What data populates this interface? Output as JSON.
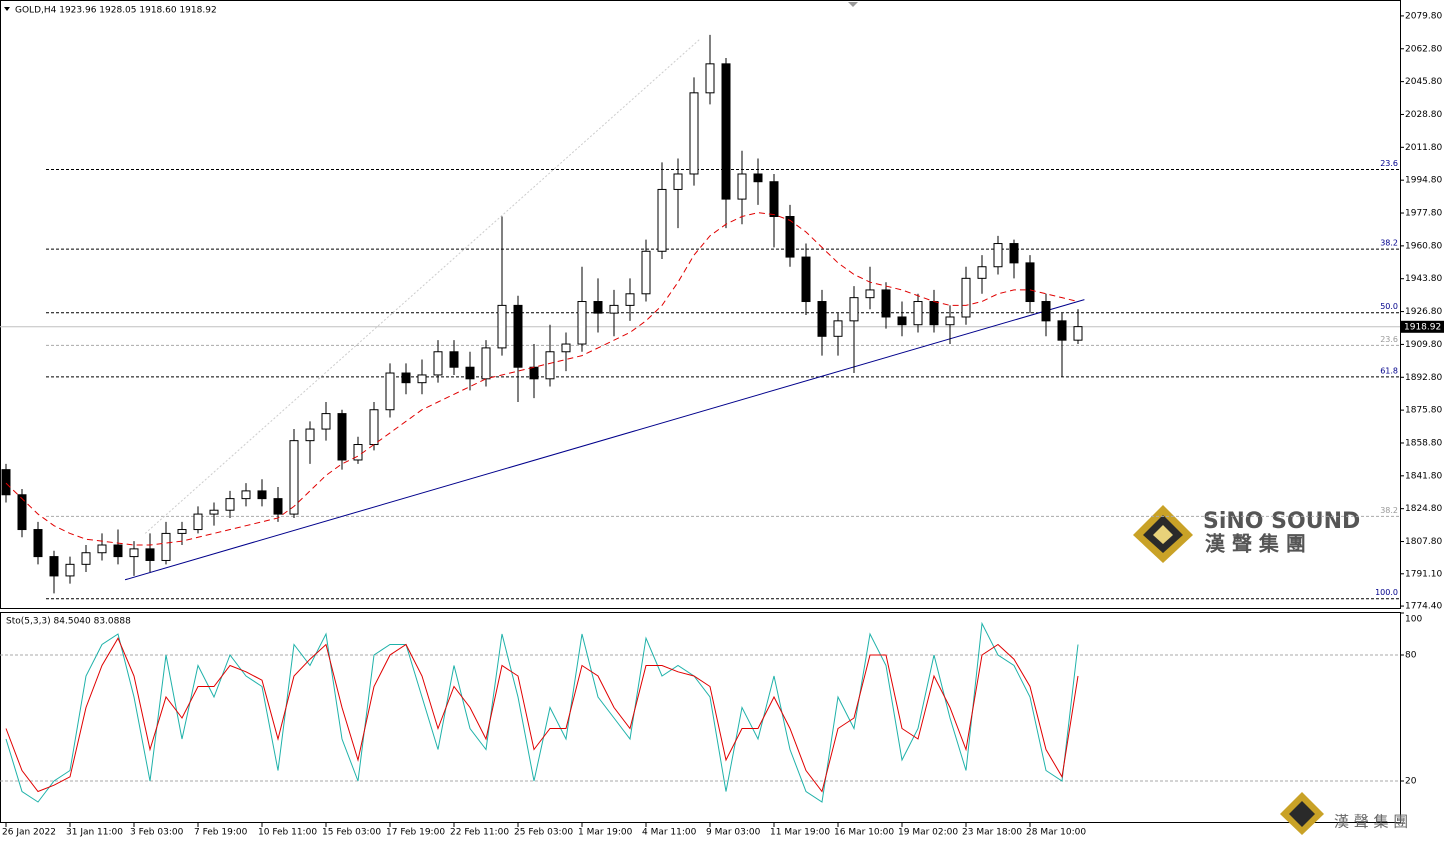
{
  "chart_data": [
    {
      "type": "candlestick",
      "title": "GOLD,H4  1923.96 1928.05 1918.60 1918.92",
      "categories": [
        "26 Jan 2022",
        null,
        null,
        null,
        "31 Jan 11:00",
        null,
        null,
        null,
        "3 Feb 03:00",
        null,
        null,
        null,
        "7 Feb 19:00",
        null,
        null,
        null,
        "10 Feb 11:00",
        null,
        null,
        null,
        "15 Feb 03:00",
        null,
        null,
        null,
        "17 Feb 19:00",
        null,
        null,
        null,
        "22 Feb 11:00",
        null,
        null,
        null,
        "25 Feb 03:00",
        null,
        null,
        null,
        "1 Mar 19:00",
        null,
        null,
        null,
        "4 Mar 11:00",
        null,
        null,
        null,
        "9 Mar 03:00",
        null,
        null,
        null,
        "11 Mar 19:00",
        null,
        null,
        null,
        "16 Mar 10:00",
        null,
        null,
        null,
        "19 Mar 02:00",
        null,
        null,
        null,
        "23 Mar 18:00",
        null,
        null,
        null,
        "28 Mar 10:00",
        null,
        null,
        null
      ],
      "candles": [
        [
          1845,
          1848,
          1828,
          1832
        ],
        [
          1832,
          1835,
          1810,
          1814
        ],
        [
          1814,
          1818,
          1796,
          1800
        ],
        [
          1800,
          1803,
          1781,
          1790
        ],
        [
          1790,
          1800,
          1786,
          1796
        ],
        [
          1796,
          1806,
          1792,
          1802
        ],
        [
          1802,
          1812,
          1798,
          1806
        ],
        [
          1806,
          1814,
          1796,
          1800
        ],
        [
          1800,
          1808,
          1790,
          1804
        ],
        [
          1804,
          1812,
          1792,
          1798
        ],
        [
          1798,
          1818,
          1796,
          1812
        ],
        [
          1812,
          1818,
          1806,
          1814
        ],
        [
          1814,
          1826,
          1812,
          1822
        ],
        [
          1822,
          1828,
          1816,
          1824
        ],
        [
          1824,
          1834,
          1820,
          1830
        ],
        [
          1830,
          1838,
          1826,
          1834
        ],
        [
          1834,
          1840,
          1826,
          1830
        ],
        [
          1830,
          1836,
          1818,
          1822
        ],
        [
          1822,
          1866,
          1820,
          1860
        ],
        [
          1860,
          1870,
          1848,
          1866
        ],
        [
          1866,
          1880,
          1860,
          1874
        ],
        [
          1874,
          1876,
          1845,
          1850
        ],
        [
          1850,
          1862,
          1848,
          1858
        ],
        [
          1858,
          1880,
          1855,
          1876
        ],
        [
          1876,
          1900,
          1872,
          1895
        ],
        [
          1895,
          1900,
          1884,
          1890
        ],
        [
          1890,
          1902,
          1884,
          1894
        ],
        [
          1894,
          1912,
          1890,
          1906
        ],
        [
          1906,
          1912,
          1894,
          1898
        ],
        [
          1898,
          1906,
          1886,
          1892
        ],
        [
          1892,
          1912,
          1888,
          1908
        ],
        [
          1908,
          1976,
          1904,
          1930
        ],
        [
          1930,
          1935,
          1880,
          1898
        ],
        [
          1898,
          1910,
          1882,
          1892
        ],
        [
          1892,
          1920,
          1888,
          1906
        ],
        [
          1906,
          1916,
          1896,
          1910
        ],
        [
          1910,
          1950,
          1906,
          1932
        ],
        [
          1932,
          1944,
          1916,
          1926
        ],
        [
          1926,
          1938,
          1914,
          1930
        ],
        [
          1930,
          1944,
          1922,
          1936
        ],
        [
          1936,
          1964,
          1932,
          1958
        ],
        [
          1958,
          2004,
          1954,
          1990
        ],
        [
          1990,
          2006,
          1970,
          1998
        ],
        [
          1998,
          2048,
          1992,
          2040
        ],
        [
          2040,
          2070,
          2034,
          2055
        ],
        [
          2055,
          2058,
          1970,
          1985
        ],
        [
          1985,
          2010,
          1972,
          1998
        ],
        [
          1998,
          2006,
          1982,
          1994
        ],
        [
          1994,
          1998,
          1960,
          1976
        ],
        [
          1976,
          1982,
          1950,
          1955
        ],
        [
          1955,
          1962,
          1925,
          1932
        ],
        [
          1932,
          1938,
          1904,
          1914
        ],
        [
          1914,
          1926,
          1904,
          1922
        ],
        [
          1922,
          1940,
          1895,
          1934
        ],
        [
          1934,
          1950,
          1928,
          1938
        ],
        [
          1938,
          1942,
          1918,
          1924
        ],
        [
          1924,
          1932,
          1914,
          1920
        ],
        [
          1920,
          1936,
          1916,
          1932
        ],
        [
          1932,
          1938,
          1916,
          1920
        ],
        [
          1920,
          1930,
          1910,
          1924
        ],
        [
          1924,
          1950,
          1920,
          1944
        ],
        [
          1944,
          1956,
          1936,
          1950
        ],
        [
          1950,
          1966,
          1946,
          1962
        ],
        [
          1962,
          1964,
          1944,
          1952
        ],
        [
          1952,
          1956,
          1926,
          1932
        ],
        [
          1932,
          1936,
          1914,
          1922
        ],
        [
          1922,
          1926,
          1893,
          1912
        ],
        [
          1912,
          1928,
          1910,
          1919
        ]
      ],
      "bull_color": "#ffffff",
      "bear_color": "#000000",
      "wick_color": "#000000",
      "ma": [
        1838,
        1830,
        1822,
        1816,
        1812,
        1809,
        1808,
        1807,
        1806,
        1806,
        1807,
        1808,
        1810,
        1812,
        1814,
        1816,
        1818,
        1820,
        1826,
        1834,
        1842,
        1848,
        1852,
        1858,
        1864,
        1870,
        1876,
        1880,
        1884,
        1888,
        1892,
        1894,
        1896,
        1898,
        1900,
        1902,
        1904,
        1908,
        1912,
        1916,
        1922,
        1930,
        1942,
        1956,
        1966,
        1972,
        1976,
        1978,
        1977,
        1974,
        1968,
        1960,
        1952,
        1946,
        1942,
        1940,
        1938,
        1935,
        1932,
        1930,
        1930,
        1932,
        1936,
        1938,
        1938,
        1936,
        1934,
        1932
      ],
      "ma_color": "#e00000",
      "ylim": [
        1773.4,
        2087.0
      ],
      "yticks": [
        {
          "value": 2079.8,
          "label": "2079.80"
        },
        {
          "value": 2062.8,
          "label": "2062.80"
        },
        {
          "value": 2045.8,
          "label": "2045.80"
        },
        {
          "value": 2028.8,
          "label": "2028.80"
        },
        {
          "value": 2011.8,
          "label": "2011.80"
        },
        {
          "value": 1994.8,
          "label": "1994.80"
        },
        {
          "value": 1977.8,
          "label": "1977.80"
        },
        {
          "value": 1960.8,
          "label": "1960.80"
        },
        {
          "value": 1943.8,
          "label": "1943.80"
        },
        {
          "value": 1926.8,
          "label": "1926.80"
        },
        {
          "value": 1909.8,
          "label": "1909.80"
        },
        {
          "value": 1892.8,
          "label": "1892.80"
        },
        {
          "value": 1875.8,
          "label": "1875.80"
        },
        {
          "value": 1858.8,
          "label": "1858.80"
        },
        {
          "value": 1841.8,
          "label": "1841.80"
        },
        {
          "value": 1824.8,
          "label": "1824.80"
        },
        {
          "value": 1807.8,
          "label": "1807.80"
        },
        {
          "value": 1791.1,
          "label": "1791.10"
        },
        {
          "value": 1774.4,
          "label": "1774.40"
        }
      ],
      "last_price": 1918.92,
      "fib_levels": [
        {
          "price": 2000.3,
          "label": "23.6",
          "color": "#00008b"
        },
        {
          "price": 1959.1,
          "label": "38.2",
          "color": "#00008b"
        },
        {
          "price": 1926.2,
          "label": "50.0",
          "color": "#00008b"
        },
        {
          "price": 1909.3,
          "label": "23.6",
          "color": "#999999"
        },
        {
          "price": 1893.0,
          "label": "61.8",
          "color": "#00008b"
        },
        {
          "price": 1820.8,
          "label": "38.2",
          "color": "#999999"
        },
        {
          "price": 1778.2,
          "label": "100.0",
          "color": "#00008b"
        }
      ],
      "trendlines": [
        {
          "x": [
            7.44,
            67.4
          ],
          "y": [
            1788,
            1933
          ],
          "color": "#00008b",
          "dash": false
        },
        {
          "x": [
            8.7,
            43.4
          ],
          "y": [
            1812,
            2068
          ],
          "color": "#cccccc",
          "dash": true
        }
      ],
      "logo": {
        "name": "SiNO SOUND",
        "chinese": "漢 聲 集 團",
        "small": "漢 聲 集 團"
      }
    },
    {
      "type": "line",
      "title": "Sto(5,3,3) 84.5040 83.0888",
      "series": [
        {
          "color": "#20b2aa",
          "values": [
            40,
            15,
            10,
            20,
            25,
            70,
            85,
            90,
            60,
            20,
            80,
            40,
            75,
            60,
            80,
            70,
            65,
            25,
            85,
            75,
            90,
            40,
            20,
            80,
            85,
            85,
            60,
            35,
            75,
            45,
            35,
            90,
            60,
            20,
            55,
            40,
            90,
            60,
            50,
            40,
            88,
            70,
            75,
            70,
            60,
            15,
            55,
            40,
            70,
            35,
            15,
            10,
            60,
            45,
            90,
            75,
            30,
            45,
            80,
            50,
            25,
            95,
            80,
            75,
            60,
            25,
            20,
            85
          ]
        },
        {
          "color": "#e00000",
          "values": [
            45,
            25,
            15,
            18,
            22,
            55,
            75,
            88,
            70,
            35,
            60,
            50,
            65,
            65,
            75,
            72,
            68,
            40,
            70,
            78,
            85,
            55,
            30,
            65,
            80,
            85,
            70,
            45,
            65,
            55,
            40,
            75,
            70,
            35,
            45,
            45,
            75,
            70,
            55,
            45,
            75,
            75,
            72,
            70,
            65,
            30,
            45,
            45,
            60,
            45,
            25,
            15,
            45,
            50,
            80,
            80,
            45,
            40,
            70,
            55,
            35,
            80,
            85,
            78,
            65,
            35,
            22,
            70
          ]
        }
      ],
      "ylim": [
        0,
        100
      ],
      "yticks": [
        100,
        80,
        20
      ],
      "levels": [
        80,
        20
      ]
    }
  ]
}
